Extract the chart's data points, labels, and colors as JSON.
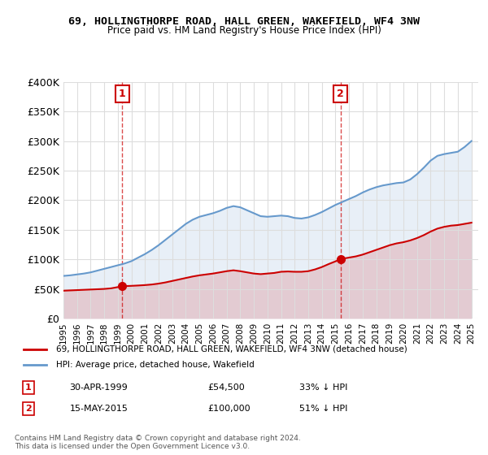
{
  "title": "69, HOLLINGTHORPE ROAD, HALL GREEN, WAKEFIELD, WF4 3NW",
  "subtitle": "Price paid vs. HM Land Registry's House Price Index (HPI)",
  "ylabel": "",
  "xlabel": "",
  "ylim": [
    0,
    400000
  ],
  "xlim_start": 1995.0,
  "xlim_end": 2025.5,
  "yticks": [
    0,
    50000,
    100000,
    150000,
    200000,
    250000,
    300000,
    350000,
    400000
  ],
  "ytick_labels": [
    "£0",
    "£50K",
    "£100K",
    "£150K",
    "£200K",
    "£250K",
    "£300K",
    "£350K",
    "£400K"
  ],
  "sale1_year": 1999.33,
  "sale1_price": 54500,
  "sale2_year": 2015.37,
  "sale2_price": 100000,
  "sale1_label": "30-APR-1999",
  "sale2_label": "15-MAY-2015",
  "sale1_pct": "33% ↓ HPI",
  "sale2_pct": "51% ↓ HPI",
  "red_color": "#cc0000",
  "blue_color": "#6699cc",
  "marker_box_color": "#cc0000",
  "legend_line1": "69, HOLLINGTHORPE ROAD, HALL GREEN, WAKEFIELD, WF4 3NW (detached house)",
  "legend_line2": "HPI: Average price, detached house, Wakefield",
  "footer": "Contains HM Land Registry data © Crown copyright and database right 2024.\nThis data is licensed under the Open Government Licence v3.0.",
  "background_color": "#ffffff",
  "grid_color": "#dddddd",
  "hpi_years": [
    1995,
    1995.5,
    1996,
    1996.5,
    1997,
    1997.5,
    1998,
    1998.5,
    1999,
    1999.5,
    2000,
    2000.5,
    2001,
    2001.5,
    2002,
    2002.5,
    2003,
    2003.5,
    2004,
    2004.5,
    2005,
    2005.5,
    2006,
    2006.5,
    2007,
    2007.5,
    2008,
    2008.5,
    2009,
    2009.5,
    2010,
    2010.5,
    2011,
    2011.5,
    2012,
    2012.5,
    2013,
    2013.5,
    2014,
    2014.5,
    2015,
    2015.5,
    2016,
    2016.5,
    2017,
    2017.5,
    2018,
    2018.5,
    2019,
    2019.5,
    2020,
    2020.5,
    2021,
    2021.5,
    2022,
    2022.5,
    2023,
    2023.5,
    2024,
    2024.5,
    2025
  ],
  "hpi_values": [
    72000,
    73000,
    74500,
    76000,
    78000,
    81000,
    84000,
    87000,
    90000,
    93000,
    97000,
    103000,
    109000,
    116000,
    124000,
    133000,
    142000,
    151000,
    160000,
    167000,
    172000,
    175000,
    178000,
    182000,
    187000,
    190000,
    188000,
    183000,
    178000,
    173000,
    172000,
    173000,
    174000,
    173000,
    170000,
    169000,
    171000,
    175000,
    180000,
    186000,
    192000,
    197000,
    202000,
    207000,
    213000,
    218000,
    222000,
    225000,
    227000,
    229000,
    230000,
    235000,
    244000,
    255000,
    267000,
    275000,
    278000,
    280000,
    282000,
    290000,
    300000
  ],
  "prop_years": [
    1995,
    1995.5,
    1996,
    1996.5,
    1997,
    1997.5,
    1998,
    1998.5,
    1999.33,
    1999.5,
    2000,
    2000.5,
    2001,
    2001.5,
    2002,
    2002.5,
    2003,
    2003.5,
    2004,
    2004.5,
    2005,
    2005.5,
    2006,
    2006.5,
    2007,
    2007.5,
    2008,
    2008.5,
    2009,
    2009.5,
    2010,
    2010.5,
    2011,
    2011.5,
    2012,
    2012.5,
    2013,
    2013.5,
    2014,
    2014.5,
    2015.37,
    2015.5,
    2016,
    2016.5,
    2017,
    2017.5,
    2018,
    2018.5,
    2019,
    2019.5,
    2020,
    2020.5,
    2021,
    2021.5,
    2022,
    2022.5,
    2023,
    2023.5,
    2024,
    2024.5,
    2025
  ],
  "prop_values": [
    47000,
    47500,
    48000,
    48500,
    49000,
    49500,
    50000,
    51000,
    54500,
    54800,
    55200,
    55800,
    56500,
    57500,
    59000,
    61000,
    63500,
    66000,
    68500,
    71000,
    73000,
    74500,
    76000,
    78000,
    80000,
    81500,
    80000,
    78000,
    76000,
    75000,
    76000,
    77000,
    79000,
    79500,
    79000,
    79000,
    80000,
    83000,
    87000,
    92000,
    100000,
    101000,
    103000,
    105000,
    108000,
    112000,
    116000,
    120000,
    124000,
    127000,
    129000,
    132000,
    136000,
    141000,
    147000,
    152000,
    155000,
    157000,
    158000,
    160000,
    162000
  ]
}
